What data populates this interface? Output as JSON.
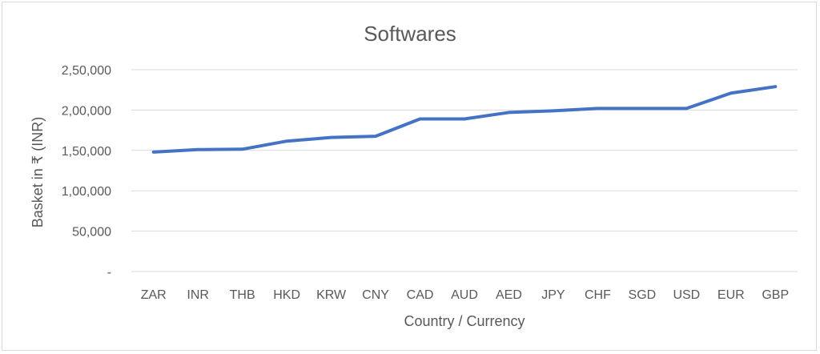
{
  "chart_data": {
    "type": "line",
    "title": "Softwares",
    "xlabel": "Country / Currency",
    "ylabel": "Basket in ₹ (INR)",
    "categories": [
      "ZAR",
      "INR",
      "THB",
      "HKD",
      "KRW",
      "CNY",
      "CAD",
      "AUD",
      "AED",
      "JPY",
      "CHF",
      "SGD",
      "USD",
      "EUR",
      "GBP"
    ],
    "series": [
      {
        "values": [
          148000,
          151000,
          151500,
          161500,
          166000,
          167500,
          189000,
          189000,
          197000,
          199000,
          202000,
          202000,
          202000,
          221000,
          229000
        ]
      }
    ],
    "ylim": [
      0,
      250000
    ],
    "yticks": [
      0,
      50000,
      100000,
      150000,
      200000,
      250000
    ],
    "ytick_labels": [
      "-",
      "50,000",
      "1,00,000",
      "1,50,000",
      "2,00,000",
      "2,50,000"
    ],
    "grid": true,
    "legend": "none",
    "line_color": "#4472c4"
  }
}
